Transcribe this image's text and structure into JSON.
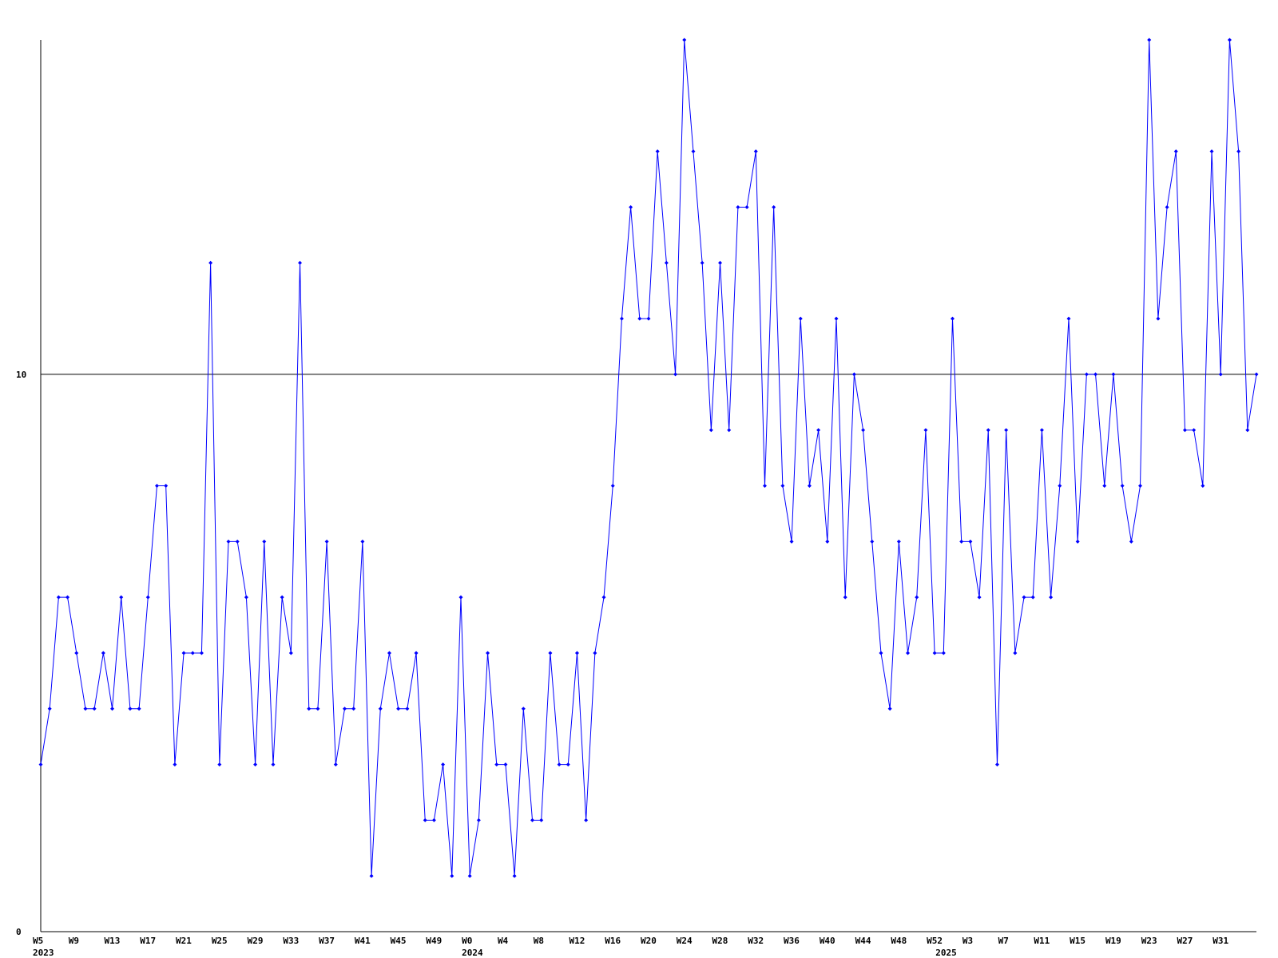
{
  "chart_data": {
    "type": "line",
    "categories": [
      "W5",
      null,
      null,
      null,
      "W9",
      null,
      null,
      null,
      "W13",
      null,
      null,
      null,
      "W17",
      null,
      null,
      null,
      "W21",
      null,
      null,
      null,
      "W25",
      null,
      null,
      null,
      "W29",
      null,
      null,
      null,
      "W33",
      null,
      null,
      null,
      "W37",
      null,
      null,
      null,
      "W41",
      null,
      null,
      null,
      "W45",
      null,
      null,
      null,
      "W49",
      null,
      null,
      null,
      "W0",
      null,
      null,
      null,
      "W4",
      null,
      null,
      null,
      "W8",
      null,
      null,
      null,
      "W12",
      null,
      null,
      null,
      "W16",
      null,
      null,
      null,
      "W20",
      null,
      null,
      null,
      "W24",
      null,
      null,
      null,
      "W28",
      null,
      null,
      null,
      "W32",
      null,
      null,
      null,
      "W36",
      null,
      null,
      null,
      "W40",
      null,
      null,
      null,
      "W44",
      null,
      null,
      null,
      "W48",
      null,
      null,
      null,
      "W52",
      null,
      null,
      null,
      "W3",
      null,
      null,
      null,
      "W7",
      null,
      null,
      null,
      "W11",
      null,
      null,
      null,
      "W15",
      null,
      null,
      null,
      "W19",
      null,
      null,
      null,
      "W23",
      null,
      null,
      null,
      "W27",
      null,
      null,
      null,
      "W31",
      null,
      null,
      null,
      null
    ],
    "category_years": [
      "2023",
      null,
      null,
      null,
      null,
      null,
      null,
      null,
      null,
      null,
      null,
      null,
      null,
      null,
      null,
      null,
      null,
      null,
      null,
      null,
      null,
      null,
      null,
      null,
      null,
      null,
      null,
      null,
      null,
      null,
      null,
      null,
      null,
      null,
      null,
      null,
      null,
      null,
      null,
      null,
      null,
      null,
      null,
      null,
      null,
      null,
      null,
      null,
      "2024",
      null,
      null,
      null,
      null,
      null,
      null,
      null,
      null,
      null,
      null,
      null,
      null,
      null,
      null,
      null,
      null,
      null,
      null,
      null,
      null,
      null,
      null,
      null,
      null,
      null,
      null,
      null,
      null,
      null,
      null,
      null,
      null,
      null,
      null,
      null,
      null,
      null,
      null,
      null,
      null,
      null,
      null,
      null,
      null,
      null,
      null,
      null,
      null,
      null,
      null,
      null,
      null,
      "2025",
      null,
      null,
      null,
      null,
      null,
      null,
      null,
      null,
      null,
      null,
      null,
      null,
      null,
      null,
      null,
      null,
      null,
      null,
      null,
      null,
      null,
      null,
      null,
      null,
      null,
      null,
      null,
      null,
      null,
      null,
      null,
      null,
      null,
      null,
      null
    ],
    "series": [
      {
        "color": "#0000ff",
        "values": [
          3,
          4,
          6,
          6,
          5,
          4,
          4,
          5,
          4,
          6,
          4,
          4,
          6,
          8,
          8,
          3,
          5,
          5,
          5,
          12,
          3,
          7,
          7,
          6,
          3,
          7,
          3,
          6,
          5,
          12,
          4,
          4,
          7,
          3,
          4,
          4,
          7,
          1,
          4,
          5,
          4,
          4,
          5,
          2,
          2,
          3,
          1,
          6,
          1,
          2,
          5,
          3,
          3,
          1,
          4,
          2,
          2,
          5,
          3,
          3,
          5,
          2,
          5,
          6,
          8,
          11,
          13,
          11,
          11,
          14,
          12,
          10,
          16,
          14,
          12,
          9,
          12,
          9,
          13,
          13,
          14,
          8,
          13,
          8,
          7,
          11,
          8,
          9,
          7,
          11,
          6,
          10,
          9,
          7,
          5,
          4,
          7,
          5,
          6,
          9,
          5,
          5,
          11,
          7,
          7,
          6,
          9,
          3,
          9,
          5,
          6,
          6,
          9,
          6,
          8,
          11,
          7,
          10,
          10,
          8,
          10,
          8,
          7,
          8,
          16,
          11,
          13,
          14,
          9,
          9,
          8,
          14,
          10,
          16,
          14,
          9,
          10
        ]
      }
    ],
    "ylim": [
      0,
      16
    ],
    "yticks": [
      0,
      10
    ],
    "grid": true
  }
}
